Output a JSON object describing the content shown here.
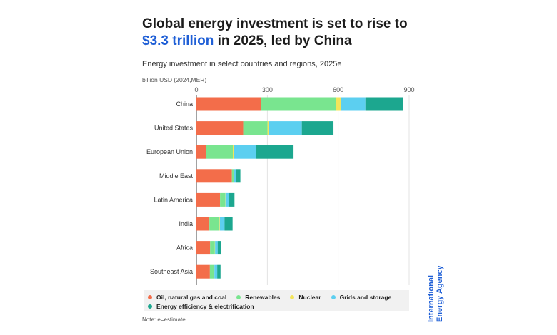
{
  "header": {
    "title_line1": "Global energy investment is set to rise to",
    "title_highlight": "$3.3 trillion",
    "title_rest": " in 2025, led by China",
    "subtitle": "Energy investment in select countries and regions, 2025e",
    "unit": "billion USD (2024,MER)"
  },
  "footer": {
    "note": "Note: e=estimate",
    "org_line1": "International",
    "org_line2": "Energy Agency"
  },
  "chart_data": {
    "type": "bar",
    "orientation": "horizontal",
    "stacked": true,
    "categories": [
      "China",
      "United States",
      "European Union",
      "Middle East",
      "Latin America",
      "India",
      "Africa",
      "Southeast Asia"
    ],
    "xlim": [
      0,
      900
    ],
    "xticks": [
      0,
      300,
      600,
      900
    ],
    "grid": false,
    "legend_position": "bottom",
    "series": [
      {
        "name": "Oil, natural gas and coal",
        "color": "#f36d4a",
        "values": [
          272,
          198,
          40,
          150,
          100,
          55,
          58,
          57
        ]
      },
      {
        "name": "Renewables",
        "color": "#79e58f",
        "values": [
          318,
          103,
          114,
          7,
          22,
          40,
          20,
          18
        ]
      },
      {
        "name": "Nuclear",
        "color": "#f3e55a",
        "values": [
          20,
          7,
          5,
          2,
          1,
          4,
          1,
          1
        ]
      },
      {
        "name": "Grids and storage",
        "color": "#5ccff0",
        "values": [
          105,
          138,
          92,
          10,
          14,
          20,
          11,
          12
        ]
      },
      {
        "name": "Energy efficiency & electrification",
        "color": "#1ca78f",
        "values": [
          160,
          134,
          160,
          17,
          24,
          34,
          15,
          14
        ]
      }
    ]
  }
}
